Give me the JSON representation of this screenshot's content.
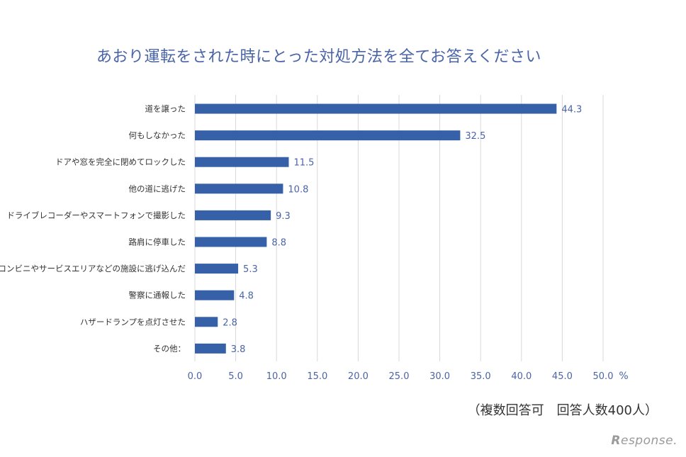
{
  "chart_data": {
    "type": "bar",
    "orientation": "horizontal",
    "title": "あおり運転をされた時にとった対処方法を全てお答えください",
    "unit": "%",
    "categories": [
      "道を譲った",
      "何もしなかった",
      "ドアや窓を完全に閉めてロックした",
      "他の道に逃げた",
      "ドライブレコーダーやスマートフォンで撮影した",
      "路肩に停車した",
      "コンビニやサービスエリアなどの施設に逃げ込んだ",
      "警察に通報した",
      "ハザードランプを点灯させた",
      "その他："
    ],
    "values": [
      44.3,
      32.5,
      11.5,
      10.8,
      9.3,
      8.8,
      5.3,
      4.8,
      2.8,
      3.8
    ],
    "value_labels": [
      "44.3",
      "32.5",
      "11.5",
      "10.8",
      "9.3",
      "8.8",
      "5.3",
      "4.8",
      "2.8",
      "3.8"
    ],
    "xlim": [
      0,
      50
    ],
    "xticks": [
      "0.0",
      "5.0",
      "10.0",
      "15.0",
      "20.0",
      "25.0",
      "30.0",
      "35.0",
      "40.0",
      "45.0",
      "50.0"
    ],
    "grid": "vertical",
    "bar_color": "#3660a8"
  },
  "note": "（複数回答可　回答人数400人）",
  "logo": {
    "initial": "R",
    "rest": "esponse."
  },
  "colors": {
    "title": "#4a64a8",
    "label": "#333333",
    "value": "#4a64a8",
    "grid": "#d9d9d9"
  }
}
